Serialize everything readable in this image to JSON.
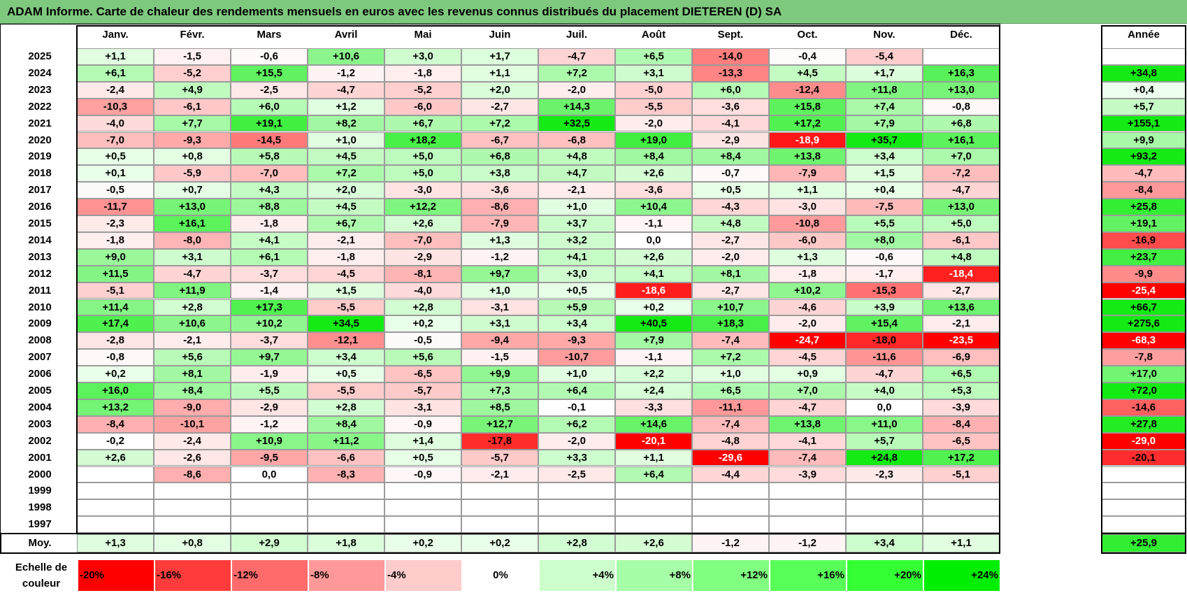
{
  "title": "ADAM Informe. Carte de chaleur des rendements mensuels en euros avec les revenus connus distribués du placement DIETEREN (D) SA",
  "chart_data": {
    "type": "heatmap",
    "title": "ADAM Informe. Carte de chaleur des rendements mensuels en euros avec les revenus connus distribués du placement DIETEREN (D) SA",
    "months": [
      "Janv.",
      "Févr.",
      "Mars",
      "Avril",
      "Mai",
      "Juin",
      "Juil.",
      "Août",
      "Sept.",
      "Oct.",
      "Nov.",
      "Déc."
    ],
    "annual_header": "Année",
    "rows": [
      {
        "year": "2025",
        "values": [
          "+1,1",
          "-1,5",
          "-0,6",
          "+10,6",
          "+3,0",
          "+1,7",
          "-4,7",
          "+6,5",
          "-14,0",
          "-0,4",
          "-5,4",
          ""
        ],
        "annual": ""
      },
      {
        "year": "2024",
        "values": [
          "+6,1",
          "-5,2",
          "+15,5",
          "-1,2",
          "-1,8",
          "+1,1",
          "+7,2",
          "+3,1",
          "-13,3",
          "+4,5",
          "+1,7",
          "+16,3"
        ],
        "annual": "+34,8"
      },
      {
        "year": "2023",
        "values": [
          "-2,4",
          "+4,9",
          "-2,5",
          "-4,7",
          "-5,2",
          "+2,0",
          "-2,0",
          "-5,0",
          "+6,0",
          "-12,4",
          "+11,8",
          "+13,0"
        ],
        "annual": "+0,4"
      },
      {
        "year": "2022",
        "values": [
          "-10,3",
          "-6,1",
          "+6,0",
          "+1,2",
          "-6,0",
          "-2,7",
          "+14,3",
          "-5,5",
          "-3,6",
          "+15,8",
          "+7,4",
          "-0,8"
        ],
        "annual": "+5,7"
      },
      {
        "year": "2021",
        "values": [
          "-4,0",
          "+7,7",
          "+19,1",
          "+8,2",
          "+6,7",
          "+7,2",
          "+32,5",
          "-2,0",
          "-4,1",
          "+17,2",
          "+7,9",
          "+6,8"
        ],
        "annual": "+155,1"
      },
      {
        "year": "2020",
        "values": [
          "-7,0",
          "-9,3",
          "-14,5",
          "+1,0",
          "+18,2",
          "-6,7",
          "-6,8",
          "+19,0",
          "-2,9",
          "-18,9",
          "+35,7",
          "+16,1"
        ],
        "annual": "+9,9"
      },
      {
        "year": "2019",
        "values": [
          "+0,5",
          "+0,8",
          "+5,8",
          "+4,5",
          "+5,0",
          "+6,8",
          "+4,8",
          "+8,4",
          "+8,4",
          "+13,8",
          "+3,4",
          "+7,0"
        ],
        "annual": "+93,2"
      },
      {
        "year": "2018",
        "values": [
          "+0,1",
          "-5,9",
          "-7,0",
          "+7,2",
          "+5,0",
          "+3,8",
          "+4,7",
          "+2,6",
          "-0,7",
          "-7,9",
          "+1,5",
          "-7,2"
        ],
        "annual": "-4,7"
      },
      {
        "year": "2017",
        "values": [
          "-0,5",
          "+0,7",
          "+4,3",
          "+2,0",
          "-3,0",
          "-3,6",
          "-2,1",
          "-3,6",
          "+0,5",
          "+1,1",
          "+0,4",
          "-4,7"
        ],
        "annual": "-8,4"
      },
      {
        "year": "2016",
        "values": [
          "-11,7",
          "+13,0",
          "+8,8",
          "+4,5",
          "+12,2",
          "-8,6",
          "+1,0",
          "+10,4",
          "-4,3",
          "-3,0",
          "-7,5",
          "+13,0"
        ],
        "annual": "+25,8"
      },
      {
        "year": "2015",
        "values": [
          "-2,3",
          "+16,1",
          "-1,8",
          "+6,7",
          "+2,6",
          "-7,9",
          "+3,7",
          "-1,1",
          "+4,8",
          "-10,8",
          "+5,5",
          "+5,0"
        ],
        "annual": "+19,1"
      },
      {
        "year": "2014",
        "values": [
          "-1,8",
          "-8,0",
          "+4,1",
          "-2,1",
          "-7,0",
          "+1,3",
          "+3,2",
          "0,0",
          "-2,7",
          "-6,0",
          "+8,0",
          "-6,1"
        ],
        "annual": "-16,9"
      },
      {
        "year": "2013",
        "values": [
          "+9,0",
          "+3,1",
          "+6,1",
          "-1,8",
          "-2,9",
          "-1,2",
          "+4,1",
          "+2,6",
          "-2,0",
          "+1,3",
          "-0,6",
          "+4,8"
        ],
        "annual": "+23,7"
      },
      {
        "year": "2012",
        "values": [
          "+11,5",
          "-4,7",
          "-3,7",
          "-4,5",
          "-8,1",
          "+9,7",
          "+3,0",
          "+4,1",
          "+8,1",
          "-1,8",
          "-1,7",
          "-18,4"
        ],
        "annual": "-9,9"
      },
      {
        "year": "2011",
        "values": [
          "-5,1",
          "+11,9",
          "-1,4",
          "+1,5",
          "-4,0",
          "+1,0",
          "+0,5",
          "-18,6",
          "-2,7",
          "+10,2",
          "-15,3",
          "-2,7"
        ],
        "annual": "-25,4"
      },
      {
        "year": "2010",
        "values": [
          "+11,4",
          "+2,8",
          "+17,3",
          "-5,5",
          "+2,8",
          "-3,1",
          "+5,9",
          "+0,2",
          "+10,7",
          "-4,6",
          "+3,9",
          "+13,6"
        ],
        "annual": "+66,7"
      },
      {
        "year": "2009",
        "values": [
          "+17,4",
          "+10,6",
          "+10,2",
          "+34,5",
          "+0,2",
          "+3,1",
          "+3,4",
          "+40,5",
          "+18,3",
          "-2,0",
          "+15,4",
          "-2,1"
        ],
        "annual": "+275,6"
      },
      {
        "year": "2008",
        "values": [
          "-2,8",
          "-2,1",
          "-3,7",
          "-12,1",
          "-0,5",
          "-9,4",
          "-9,3",
          "+7,9",
          "-7,4",
          "-24,7",
          "-18,0",
          "-23,5"
        ],
        "annual": "-68,3"
      },
      {
        "year": "2007",
        "values": [
          "-0,8",
          "+5,6",
          "+9,7",
          "+3,4",
          "+5,6",
          "-1,5",
          "-10,7",
          "-1,1",
          "+7,2",
          "-4,5",
          "-11,6",
          "-6,9"
        ],
        "annual": "-7,8"
      },
      {
        "year": "2006",
        "values": [
          "+0,2",
          "+8,1",
          "-1,9",
          "+0,5",
          "-6,5",
          "+9,9",
          "+1,0",
          "+2,2",
          "+1,0",
          "+0,9",
          "-4,7",
          "+6,5"
        ],
        "annual": "+17,0"
      },
      {
        "year": "2005",
        "values": [
          "+16,0",
          "+8,4",
          "+5,5",
          "-5,5",
          "-5,7",
          "+7,3",
          "+6,4",
          "+2,4",
          "+6,5",
          "+7,0",
          "+4,0",
          "+5,3"
        ],
        "annual": "+72,0"
      },
      {
        "year": "2004",
        "values": [
          "+13,2",
          "-9,0",
          "-2,9",
          "+2,8",
          "-3,1",
          "+8,5",
          "-0,1",
          "-3,3",
          "-11,1",
          "-4,7",
          "0,0",
          "-3,9"
        ],
        "annual": "-14,6"
      },
      {
        "year": "2003",
        "values": [
          "-8,4",
          "-10,1",
          "-1,2",
          "+8,4",
          "-0,9",
          "+12,7",
          "+6,2",
          "+14,6",
          "-7,4",
          "+13,8",
          "+11,0",
          "-8,4"
        ],
        "annual": "+27,8"
      },
      {
        "year": "2002",
        "values": [
          "-0,2",
          "-2,4",
          "+10,9",
          "+11,2",
          "+1,4",
          "-17,8",
          "-2,0",
          "-20,1",
          "-4,8",
          "-4,1",
          "+5,7",
          "-6,5"
        ],
        "annual": "-29,0"
      },
      {
        "year": "2001",
        "values": [
          "+2,6",
          "-2,6",
          "-9,5",
          "-6,6",
          "+0,5",
          "-5,7",
          "+3,3",
          "+1,1",
          "-29,6",
          "-7,4",
          "+24,8",
          "+17,2"
        ],
        "annual": "-20,1"
      },
      {
        "year": "2000",
        "values": [
          "",
          "-8,6",
          "0,0",
          "-8,3",
          "-0,9",
          "-2,1",
          "-2,5",
          "+6,4",
          "-4,4",
          "-3,9",
          "-2,3",
          "-5,1"
        ],
        "annual": ""
      },
      {
        "year": "1999",
        "values": [
          "",
          "",
          "",
          "",
          "",
          "",
          "",
          "",
          "",
          "",
          "",
          ""
        ],
        "annual": ""
      },
      {
        "year": "1998",
        "values": [
          "",
          "",
          "",
          "",
          "",
          "",
          "",
          "",
          "",
          "",
          "",
          ""
        ],
        "annual": ""
      },
      {
        "year": "1997",
        "values": [
          "",
          "",
          "",
          "",
          "",
          "",
          "",
          "",
          "",
          "",
          "",
          ""
        ],
        "annual": ""
      }
    ],
    "average": {
      "label": "Moy.",
      "values": [
        "+1,3",
        "+0,8",
        "+2,9",
        "+1,8",
        "+0,2",
        "+0,2",
        "+2,8",
        "+2,6",
        "-1,2",
        "-1,2",
        "+3,4",
        "+1,1"
      ],
      "annual": "+25,9"
    },
    "scale": {
      "label": "Echelle de couleur",
      "stops": [
        "-20%",
        "-16%",
        "-12%",
        "-8%",
        "-4%",
        "0%",
        "+4%",
        "+8%",
        "+12%",
        "+16%",
        "+20%",
        "+24%"
      ],
      "colors": [
        "#ff0000",
        "#ff3b3b",
        "#ff6a6a",
        "#ff9999",
        "#ffcccc",
        "#ffffff",
        "#ccffcc",
        "#a6ffa6",
        "#80ff80",
        "#59ff59",
        "#33ff33",
        "#00ee00"
      ]
    }
  }
}
